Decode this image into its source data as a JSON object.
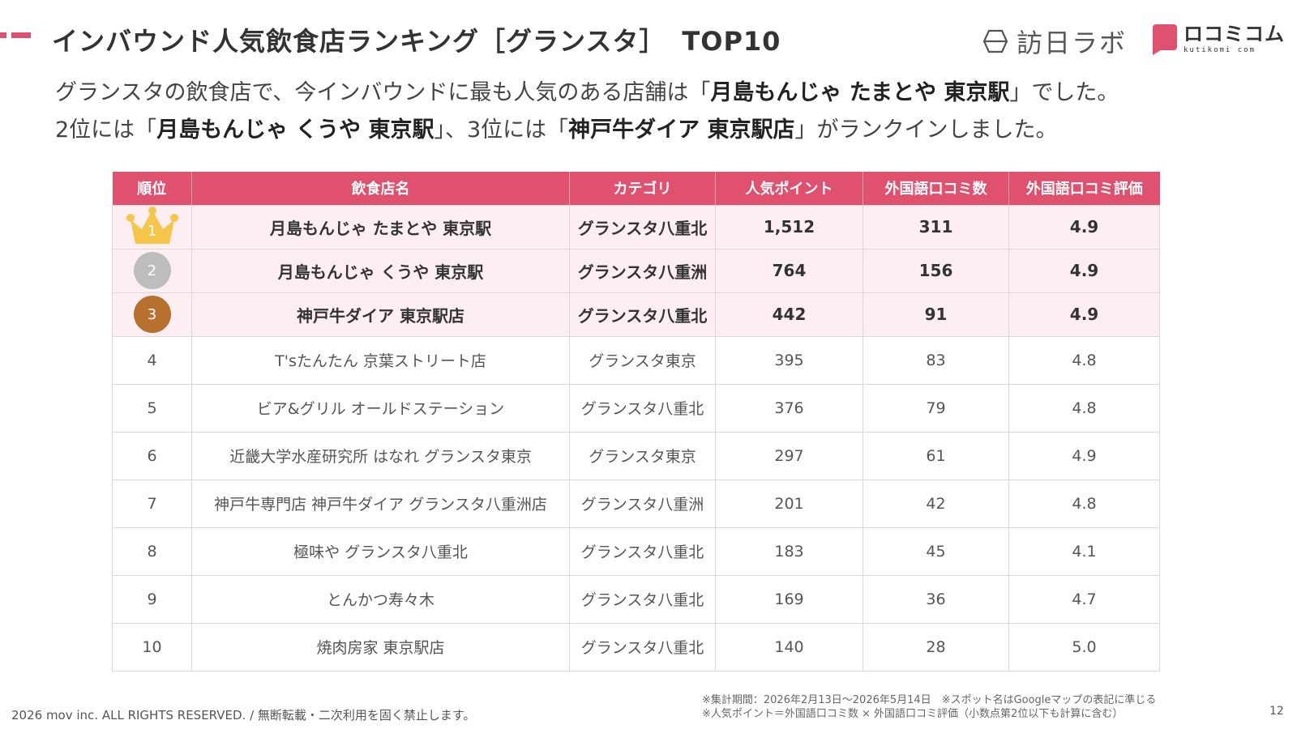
{
  "header": {
    "title": "インバウンド人気飲食店ランキング［グランスタ］",
    "title_top": "TOP10",
    "logo_houjin": "訪日ラボ",
    "logo_kuchikomi": "ロコミコム",
    "logo_kuchikomi_sub": "kutikomi com"
  },
  "lead": {
    "line1_a": "グランスタの飲食店で、今インバウンドに最も人気のある店舗は「",
    "line1_b": "月島もんじゃ たまとや 東京駅",
    "line1_c": "」でした。",
    "line2_a": "2位には「",
    "line2_b": "月島もんじゃ くうや 東京駅",
    "line2_c": "」、3位には「",
    "line2_d": "神戸牛ダイア 東京駅店",
    "line2_e": "」がランクインしました。"
  },
  "table": {
    "headers": [
      "順位",
      "飲食店名",
      "カテゴリ",
      "人気ポイント",
      "外国語口コミ数",
      "外国語口コミ評価"
    ],
    "rows": [
      {
        "rank": "1",
        "name": "月島もんじゃ たまとや 東京駅",
        "category": "グランスタ八重北",
        "points": "1,512",
        "reviews": "311",
        "rating": "4.9"
      },
      {
        "rank": "2",
        "name": "月島もんじゃ くうや 東京駅",
        "category": "グランスタ八重洲",
        "points": "764",
        "reviews": "156",
        "rating": "4.9"
      },
      {
        "rank": "3",
        "name": "神戸牛ダイア 東京駅店",
        "category": "グランスタ八重北",
        "points": "442",
        "reviews": "91",
        "rating": "4.9"
      },
      {
        "rank": "4",
        "name": "T'sたんたん 京葉ストリート店",
        "category": "グランスタ東京",
        "points": "395",
        "reviews": "83",
        "rating": "4.8"
      },
      {
        "rank": "5",
        "name": "ビア&グリル オールドステーション",
        "category": "グランスタ八重北",
        "points": "376",
        "reviews": "79",
        "rating": "4.8"
      },
      {
        "rank": "6",
        "name": "近畿大学水産研究所 はなれ グランスタ東京",
        "category": "グランスタ東京",
        "points": "297",
        "reviews": "61",
        "rating": "4.9"
      },
      {
        "rank": "7",
        "name": "神戸牛専門店 神戸牛ダイア グランスタ八重洲店",
        "category": "グランスタ八重洲",
        "points": "201",
        "reviews": "42",
        "rating": "4.8"
      },
      {
        "rank": "8",
        "name": "極味や グランスタ八重北",
        "category": "グランスタ八重北",
        "points": "183",
        "reviews": "45",
        "rating": "4.1"
      },
      {
        "rank": "9",
        "name": "とんかつ寿々木",
        "category": "グランスタ八重北",
        "points": "169",
        "reviews": "36",
        "rating": "4.7"
      },
      {
        "rank": "10",
        "name": "焼肉房家 東京駅店",
        "category": "グランスタ八重北",
        "points": "140",
        "reviews": "28",
        "rating": "5.0"
      }
    ]
  },
  "footer": {
    "copyright": "2026 mov inc. ALL RIGHTS RESERVED. / 無断転載・二次利用を固く禁止します。",
    "note1": "※集計期間：2026年2月13日〜2026年5月14日　※スポット名はGoogleマップの表記に準じる",
    "note2": "※人気ポイント＝外国語口コミ数 × 外国語口コミ評価（小数点第2位以下も計算に含む）",
    "page": "12"
  },
  "colors": {
    "accent": "#e0506f",
    "top_row_bg": "#fdeef2",
    "gold": "#f5c64a",
    "silver": "#bdbdbd",
    "bronze": "#b8702f"
  },
  "icons": {
    "rank1": "crown-icon",
    "rank2": "silver-medal-icon",
    "rank3": "bronze-medal-icon",
    "houjin_logo": "houjin-lab-logo-icon",
    "kuchikomi_logo": "speech-bubble-logo-icon"
  }
}
